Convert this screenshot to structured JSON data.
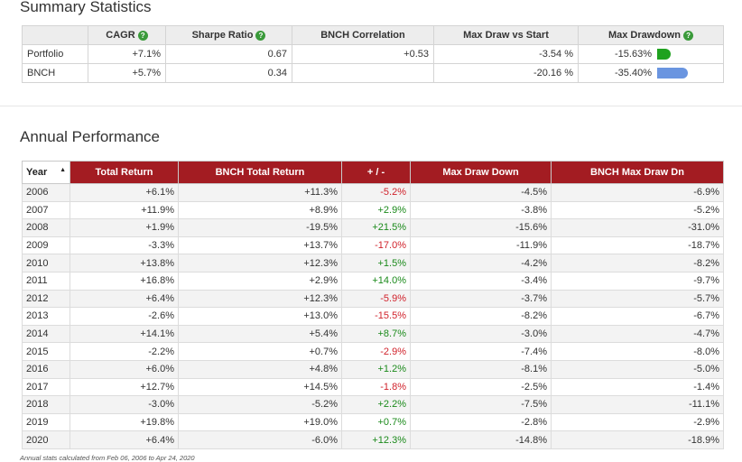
{
  "summary": {
    "title": "Summary Statistics",
    "columns": [
      null,
      "CAGR",
      "Sharpe Ratio",
      "BNCH Correlation",
      "Max Draw vs Start",
      "Max Drawdown"
    ],
    "rows": [
      [
        "Portfolio",
        "+7.1%",
        "0.67",
        "+0.53",
        "-3.54 %",
        "-15.63%"
      ],
      [
        "BNCH",
        "+5.7%",
        "0.34",
        null,
        "-20.16 %",
        "-35.40%"
      ]
    ]
  },
  "annual": {
    "title": "Annual Performance",
    "columns": [
      "Year",
      "Total Return",
      "BNCH Total Return",
      "+ / -",
      "Max Draw Down",
      "BNCH Max Draw Dn"
    ],
    "rows": [
      [
        "2006",
        "+6.1%",
        "+11.3%",
        "-5.2%",
        "-4.5%",
        "-6.9%"
      ],
      [
        "2007",
        "+11.9%",
        "+8.9%",
        "+2.9%",
        "-3.8%",
        "-5.2%"
      ],
      [
        "2008",
        "+1.9%",
        "-19.5%",
        "+21.5%",
        "-15.6%",
        "-31.0%"
      ],
      [
        "2009",
        "-3.3%",
        "+13.7%",
        "-17.0%",
        "-11.9%",
        "-18.7%"
      ],
      [
        "2010",
        "+13.8%",
        "+12.3%",
        "+1.5%",
        "-4.2%",
        "-8.2%"
      ],
      [
        "2011",
        "+16.8%",
        "+2.9%",
        "+14.0%",
        "-3.4%",
        "-9.7%"
      ],
      [
        "2012",
        "+6.4%",
        "+12.3%",
        "-5.9%",
        "-3.7%",
        "-5.7%"
      ],
      [
        "2013",
        "-2.6%",
        "+13.0%",
        "-15.5%",
        "-8.2%",
        "-6.7%"
      ],
      [
        "2014",
        "+14.1%",
        "+5.4%",
        "+8.7%",
        "-3.0%",
        "-4.7%"
      ],
      [
        "2015",
        "-2.2%",
        "+0.7%",
        "-2.9%",
        "-7.4%",
        "-8.0%"
      ],
      [
        "2016",
        "+6.0%",
        "+4.8%",
        "+1.2%",
        "-8.1%",
        "-5.0%"
      ],
      [
        "2017",
        "+12.7%",
        "+14.5%",
        "-1.8%",
        "-2.5%",
        "-1.4%"
      ],
      [
        "2018",
        "-3.0%",
        "-5.2%",
        "+2.2%",
        "-7.5%",
        "-11.1%"
      ],
      [
        "2019",
        "+19.8%",
        "+19.0%",
        "+0.7%",
        "-2.8%",
        "-2.9%"
      ],
      [
        "2020",
        "+6.4%",
        "-6.0%",
        "+12.3%",
        "-14.8%",
        "-18.9%"
      ]
    ],
    "footnote": "Annual stats calculated from Feb 06, 2006 to Apr 24, 2020"
  }
}
